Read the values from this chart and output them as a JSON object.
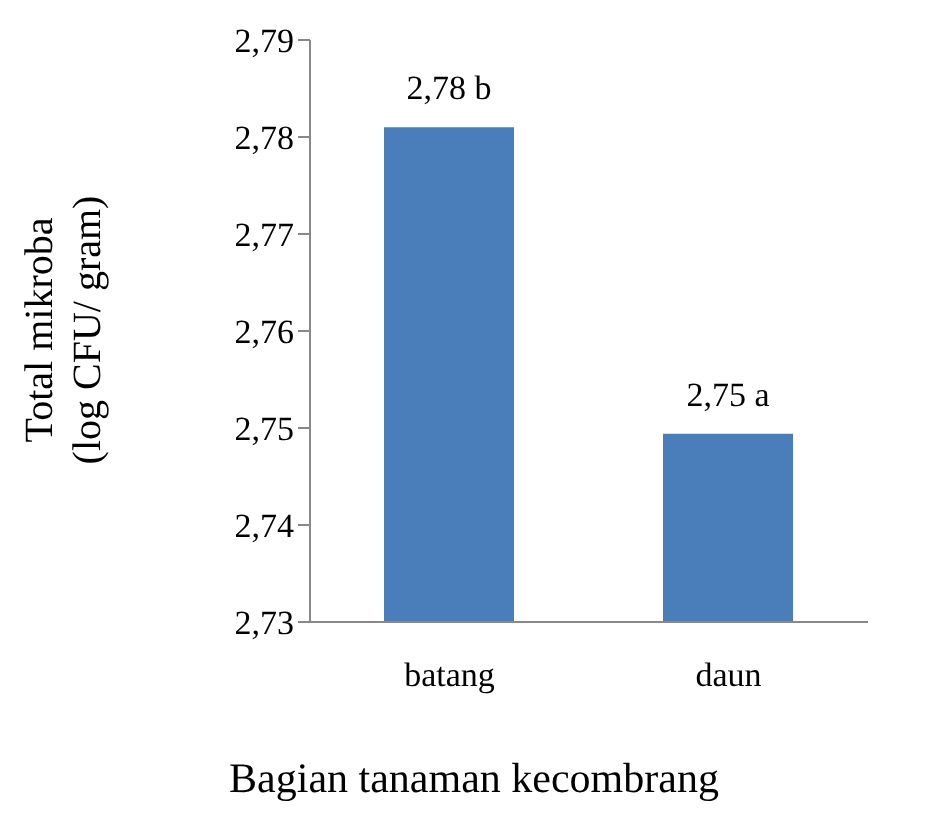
{
  "chart_data": {
    "type": "bar",
    "xlabel": "Bagian tanaman kecombrang",
    "ylabel": "Total mikroba\n(log CFU/ gram)",
    "categories": [
      "batang",
      "daun"
    ],
    "values": [
      2.781,
      2.7494
    ],
    "color": "#4a7ebb",
    "value_labels": [
      "2,78 b",
      "2,75 a"
    ],
    "ylim": [
      2.73,
      2.79
    ],
    "yticks": [
      {
        "value": 2.73,
        "label": "2,73"
      },
      {
        "value": 2.74,
        "label": "2,74"
      },
      {
        "value": 2.75,
        "label": "2,75"
      },
      {
        "value": 2.76,
        "label": "2,76"
      },
      {
        "value": 2.77,
        "label": "2,77"
      },
      {
        "value": 2.78,
        "label": "2,78"
      },
      {
        "value": 2.79,
        "label": "2,79"
      }
    ],
    "grid": false,
    "legend": false
  }
}
